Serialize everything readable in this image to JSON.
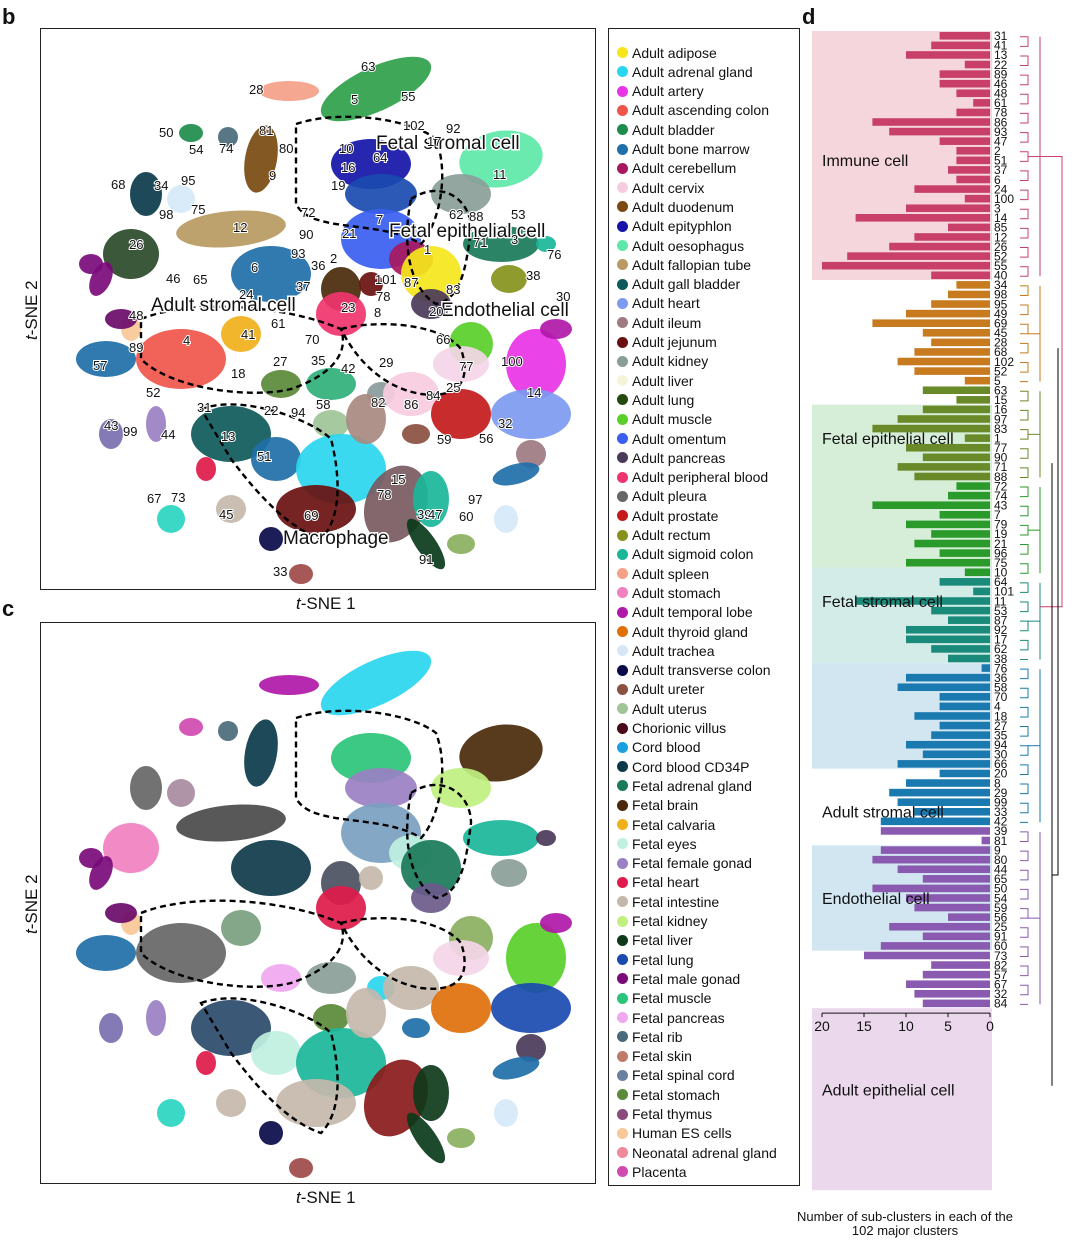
{
  "panels": {
    "b": {
      "letter": "b",
      "xlabel_prefix": "t",
      "xlabel_rest": "-SNE 1",
      "ylabel_prefix": "t",
      "ylabel_rest": "-SNE 2"
    },
    "c": {
      "letter": "c",
      "xlabel_prefix": "t",
      "xlabel_rest": "-SNE 1",
      "ylabel_prefix": "t",
      "ylabel_rest": "-SNE 2"
    },
    "d": {
      "letter": "d"
    }
  },
  "tsne_b": {
    "regions": [
      {
        "label": "Fetal stromal cell"
      },
      {
        "label": "Fetal epithelial cell"
      },
      {
        "label": "Adult stromal cell"
      },
      {
        "label": "Endothelial cell"
      },
      {
        "label": "Macrophage"
      }
    ],
    "cluster_labels": [
      "63",
      "5",
      "55",
      "28",
      "102",
      "92",
      "50",
      "54",
      "74",
      "81",
      "80",
      "10",
      "64",
      "16",
      "17",
      "11",
      "68",
      "34",
      "95",
      "9",
      "19",
      "98",
      "75",
      "72",
      "7",
      "62",
      "88",
      "53",
      "12",
      "90",
      "21",
      "3",
      "1",
      "71",
      "76",
      "26",
      "93",
      "2",
      "38",
      "36",
      "46",
      "65",
      "6",
      "24",
      "37",
      "78",
      "101",
      "87",
      "30",
      "48",
      "83",
      "23",
      "8",
      "20",
      "89",
      "4",
      "41",
      "61",
      "70",
      "66",
      "57",
      "27",
      "18",
      "42",
      "29",
      "100",
      "52",
      "35",
      "58",
      "82",
      "86",
      "25",
      "14",
      "31",
      "22",
      "94",
      "43",
      "99",
      "44",
      "13",
      "51",
      "56",
      "59",
      "32",
      "67",
      "73",
      "15",
      "78",
      "45",
      "69",
      "39",
      "97",
      "47",
      "60",
      "33",
      "91",
      "77",
      "84"
    ]
  },
  "legend": [
    {
      "label": "Adult adipose",
      "color": "#f5e61a"
    },
    {
      "label": "Adult adrenal gland",
      "color": "#2ad6ef"
    },
    {
      "label": "Adult artery",
      "color": "#e833e6"
    },
    {
      "label": "Adult ascending colon",
      "color": "#f0554a"
    },
    {
      "label": "Adult bladder",
      "color": "#1d8c4a"
    },
    {
      "label": "Adult bone marrow",
      "color": "#1f6fa8"
    },
    {
      "label": "Adult cerebellum",
      "color": "#a8185e"
    },
    {
      "label": "Adult cervix",
      "color": "#f7cce0"
    },
    {
      "label": "Adult duodenum",
      "color": "#7a4a10"
    },
    {
      "label": "Adult epityphlon",
      "color": "#1414a8"
    },
    {
      "label": "Adult oesophagus",
      "color": "#5ee8a8"
    },
    {
      "label": "Adult fallopian tube",
      "color": "#b99a62"
    },
    {
      "label": "Adult gall bladder",
      "color": "#0e5a5a"
    },
    {
      "label": "Adult heart",
      "color": "#7c9af0"
    },
    {
      "label": "Adult ileum",
      "color": "#9e7a82"
    },
    {
      "label": "Adult jejunum",
      "color": "#6a1010"
    },
    {
      "label": "Adult kidney",
      "color": "#8a9e98"
    },
    {
      "label": "Adult liver",
      "color": "#f4f4da"
    },
    {
      "label": "Adult lung",
      "color": "#254a0e"
    },
    {
      "label": "Adult muscle",
      "color": "#5acf2a"
    },
    {
      "label": "Adult omentum",
      "color": "#3a5ef0"
    },
    {
      "label": "Adult pancreas",
      "color": "#4a3a5a"
    },
    {
      "label": "Adult peripheral blood",
      "color": "#f0356e"
    },
    {
      "label": "Adult pleura",
      "color": "#666666"
    },
    {
      "label": "Adult prostate",
      "color": "#c41a1a"
    },
    {
      "label": "Adult rectum",
      "color": "#86921a"
    },
    {
      "label": "Adult sigmoid colon",
      "color": "#1ab69a"
    },
    {
      "label": "Adult spleen",
      "color": "#f5a088"
    },
    {
      "label": "Adult stomach",
      "color": "#f080c0"
    },
    {
      "label": "Adult temporal lobe",
      "color": "#b018a8"
    },
    {
      "label": "Adult thyroid gland",
      "color": "#e0700a"
    },
    {
      "label": "Adult trachea",
      "color": "#d6e8f8"
    },
    {
      "label": "Adult transverse colon",
      "color": "#0a0a4a"
    },
    {
      "label": "Adult ureter",
      "color": "#8a5040"
    },
    {
      "label": "Adult uterus",
      "color": "#a0c498"
    },
    {
      "label": "Chorionic villus",
      "color": "#4a0a1a"
    },
    {
      "label": "Cord blood",
      "color": "#1aa0e0"
    },
    {
      "label": "Cord blood CD34P",
      "color": "#0a3a4a"
    },
    {
      "label": "Fetal adrenal gland",
      "color": "#1a7a5a"
    },
    {
      "label": "Fetal brain",
      "color": "#4a2a0a"
    },
    {
      "label": "Fetal calvaria",
      "color": "#f0b01a"
    },
    {
      "label": "Fetal eyes",
      "color": "#c0f0e0"
    },
    {
      "label": "Fetal female gonad",
      "color": "#9a80c4"
    },
    {
      "label": "Fetal heart",
      "color": "#e01a4a"
    },
    {
      "label": "Fetal intestine",
      "color": "#c4b8aa"
    },
    {
      "label": "Fetal kidney",
      "color": "#c0f080"
    },
    {
      "label": "Fetal liver",
      "color": "#0e3a1a"
    },
    {
      "label": "Fetal lung",
      "color": "#1a4ab0"
    },
    {
      "label": "Fetal male gonad",
      "color": "#7a0a7a"
    },
    {
      "label": "Fetal muscle",
      "color": "#2ac47a"
    },
    {
      "label": "Fetal pancreas",
      "color": "#f0a8f0"
    },
    {
      "label": "Fetal rib",
      "color": "#4a6a7a"
    },
    {
      "label": "Fetal skin",
      "color": "#c07a6a"
    },
    {
      "label": "Fetal spinal cord",
      "color": "#6a80a0"
    },
    {
      "label": "Fetal stomach",
      "color": "#5a8a3a"
    },
    {
      "label": "Fetal thymus",
      "color": "#8a4a7a"
    },
    {
      "label": "Human ES cells",
      "color": "#f8c898"
    },
    {
      "label": "Neonatal adrenal gland",
      "color": "#f08a9a"
    },
    {
      "label": "Placenta",
      "color": "#d04ab0"
    }
  ],
  "chart_data": {
    "type": "bar",
    "orientation": "horizontal",
    "xlabel": "Number of sub-clusters in each of the 102 major clusters",
    "xticks": [
      20,
      15,
      10,
      5,
      0
    ],
    "xlim": [
      0,
      20
    ],
    "groups": [
      {
        "label": "Immune cell",
        "color": "#c8406a",
        "band": "#f4d6dc",
        "clusters": [
          "31",
          "41",
          "13",
          "22",
          "89",
          "46",
          "48",
          "61",
          "78",
          "86",
          "93",
          "47",
          "2",
          "51",
          "37",
          "6",
          "24",
          "100",
          "3",
          "14",
          "85",
          "12",
          "26",
          "52",
          "55",
          "40"
        ],
        "values": [
          6,
          7,
          10,
          3,
          6,
          6,
          4,
          2,
          4,
          14,
          12,
          6,
          4,
          4,
          5,
          4,
          9,
          3,
          10,
          16,
          5,
          9,
          12,
          17,
          20,
          7
        ]
      },
      {
        "label": "",
        "color": "#c87a1e",
        "band": null,
        "clusters": [
          "34",
          "98",
          "95",
          "49",
          "69",
          "45",
          "28",
          "68",
          "102",
          "52",
          "5"
        ],
        "values": [
          4,
          5,
          7,
          10,
          14,
          8,
          7,
          9,
          11,
          9,
          3
        ]
      },
      {
        "label": "Fetal epithelial cell",
        "color": "#6a8a2a",
        "band": "#d6eed8",
        "clusters": [
          "63",
          "15",
          "16",
          "97",
          "83",
          "1",
          "77",
          "90",
          "71",
          "88"
        ],
        "values": [
          8,
          4,
          8,
          11,
          14,
          3,
          10,
          8,
          11,
          9
        ]
      },
      {
        "label": "",
        "color": "#2a9a2a",
        "band": null,
        "clusters": [
          "72",
          "74",
          "43",
          "7",
          "79",
          "19",
          "21",
          "96",
          "75",
          "10"
        ],
        "values": [
          4,
          5,
          14,
          6,
          10,
          7,
          9,
          6,
          10,
          3
        ]
      },
      {
        "label": "Fetal stromal cell",
        "color": "#1a8a7a",
        "band": "#d4ece8",
        "clusters": [
          "64",
          "101",
          "11",
          "53",
          "87",
          "92",
          "17",
          "62",
          "38"
        ],
        "values": [
          6,
          2,
          16,
          7,
          5,
          10,
          10,
          7,
          5
        ]
      },
      {
        "label": "Adult stromal cell",
        "color": "#1a7ab0",
        "band": "#d2e6f2",
        "clusters": [
          "76",
          "36",
          "58",
          "70",
          "4",
          "18",
          "27",
          "35",
          "94",
          "30",
          "66",
          "20",
          "8",
          "29",
          "99",
          "33",
          "42"
        ],
        "values": [
          1,
          10,
          11,
          6,
          6,
          9,
          6,
          7,
          10,
          8,
          11,
          6,
          10,
          12,
          11,
          9,
          13
        ]
      },
      {
        "label": "Endothelial cell",
        "color": "#1a6aa8",
        "band": "#d2e6f2",
        "clusters": [],
        "values": []
      },
      {
        "label": "Adult epithelial cell",
        "color": "#8a5ab0",
        "band": "#ecd8ec",
        "clusters": [
          "39",
          "81",
          "9",
          "80",
          "44",
          "65",
          "50",
          "54",
          "59",
          "56",
          "25",
          "91",
          "60",
          "73",
          "82",
          "57",
          "67",
          "32",
          "84"
        ],
        "values": [
          13,
          1,
          13,
          14,
          11,
          8,
          14,
          10,
          9,
          5,
          12,
          8,
          13,
          15,
          7,
          8,
          10,
          9,
          8
        ]
      }
    ]
  }
}
